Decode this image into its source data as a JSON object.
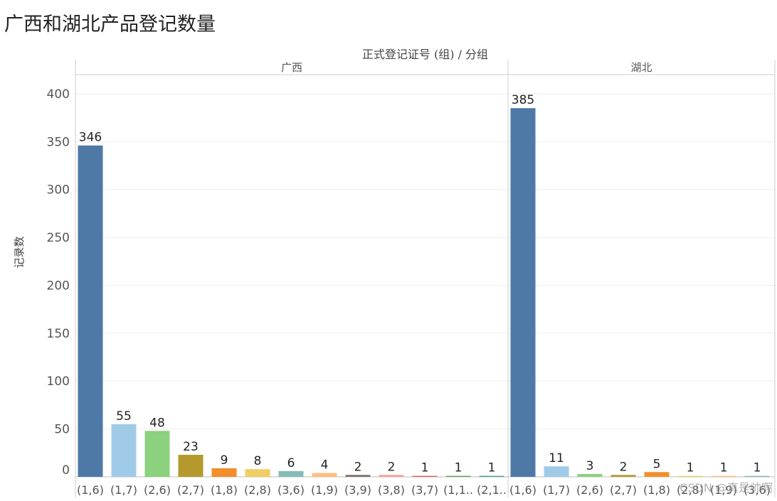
{
  "page": {
    "title": "广西和湖北产品登记数量",
    "watermark": "CSDN @真是帅啊"
  },
  "chart_data": {
    "type": "bar",
    "title": "广西和湖北产品登记数量",
    "column_header": "正式登记证号 (组) / 分组",
    "ylabel": "记录数",
    "ylim": [
      0,
      420
    ],
    "yticks": [
      0,
      50,
      100,
      150,
      200,
      250,
      300,
      350,
      400
    ],
    "grid": true,
    "panels": [
      {
        "name": "广西",
        "categories": [
          "(1,6)",
          "(1,7)",
          "(2,6)",
          "(2,7)",
          "(1,8)",
          "(2,8)",
          "(3,6)",
          "(1,9)",
          "(3,9)",
          "(3,8)",
          "(3,7)",
          "(1,1..",
          "(2,1.."
        ],
        "values": [
          346,
          55,
          48,
          23,
          9,
          8,
          6,
          4,
          2,
          2,
          1,
          1,
          1
        ],
        "colors": [
          "#4e79a7",
          "#a0cbe8",
          "#8cd17d",
          "#b6992d",
          "#f28e2b",
          "#f1ce63",
          "#86bcb6",
          "#ffbe7d",
          "#79706e",
          "#ff9d9a",
          "#e15759",
          "#59a14f",
          "#499894"
        ]
      },
      {
        "name": "湖北",
        "categories": [
          "(1,6)",
          "(1,7)",
          "(2,6)",
          "(2,7)",
          "(1,8)",
          "(2,8)",
          "(1,9)",
          "(3,6)"
        ],
        "values": [
          385,
          11,
          3,
          2,
          5,
          1,
          1,
          1
        ],
        "colors": [
          "#4e79a7",
          "#a0cbe8",
          "#8cd17d",
          "#b6992d",
          "#f28e2b",
          "#f1ce63",
          "#ffbe7d",
          "#86bcb6"
        ]
      }
    ]
  }
}
